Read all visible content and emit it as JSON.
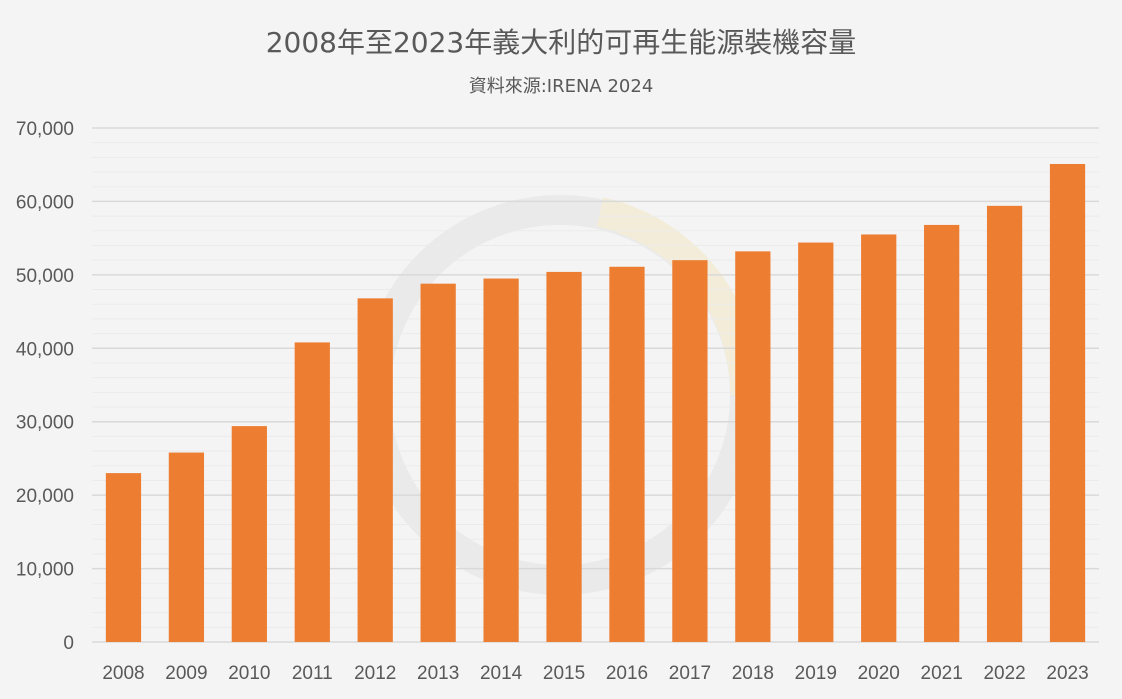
{
  "chart_data": {
    "type": "bar",
    "title": "2008年至2023年義大利的可再生能源裝機容量",
    "subtitle": "資料來源:IRENA 2024",
    "xlabel": "",
    "ylabel": "",
    "categories": [
      "2008",
      "2009",
      "2010",
      "2011",
      "2012",
      "2013",
      "2014",
      "2015",
      "2016",
      "2017",
      "2018",
      "2019",
      "2020",
      "2021",
      "2022",
      "2023"
    ],
    "values": [
      23000,
      25800,
      29400,
      40800,
      46800,
      48800,
      49500,
      50400,
      51100,
      52000,
      53200,
      54400,
      55500,
      56800,
      59400,
      65100
    ],
    "ylim": [
      0,
      70000
    ],
    "yticks": [
      0,
      10000,
      20000,
      30000,
      40000,
      50000,
      60000,
      70000
    ],
    "ytick_labels": [
      "0",
      "10,000",
      "20,000",
      "30,000",
      "40,000",
      "50,000",
      "60,000",
      "70,000"
    ],
    "grid": true,
    "legend": "none",
    "colors": {
      "bar": "#ed7d31",
      "grid_major": "#d9d9d9",
      "grid_minor": "#ebebeb",
      "text": "#595959",
      "background": "#f4f4f4"
    }
  }
}
